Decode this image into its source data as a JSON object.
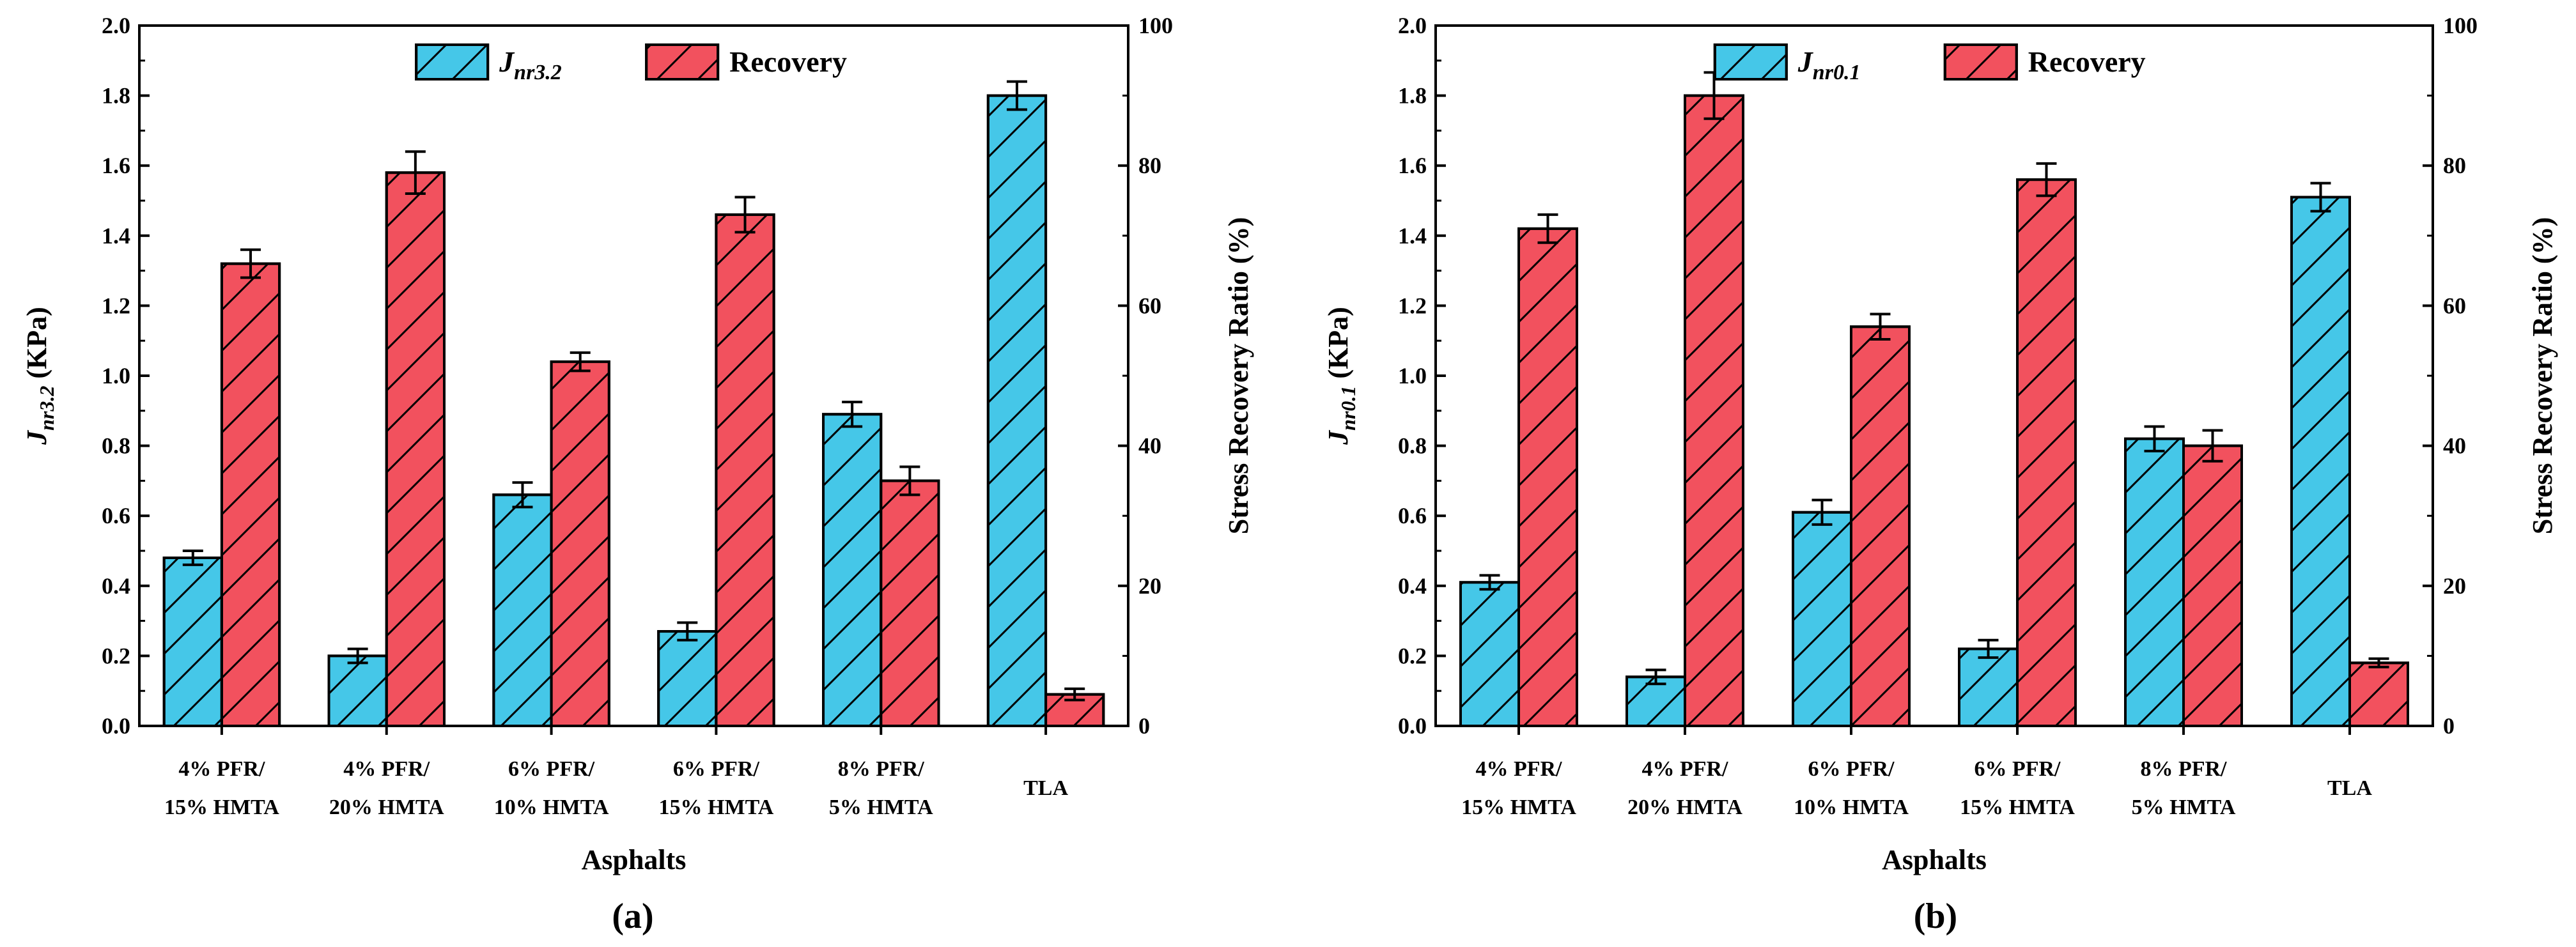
{
  "colors": {
    "series1": "#45C7E8",
    "series2": "#F2515E",
    "axis": "#000000"
  },
  "chart_data": [
    {
      "type": "bar",
      "panel": "(a)",
      "categories": [
        [
          "4% PFR/",
          "15% HMTA"
        ],
        [
          "4% PFR/",
          "20% HMTA"
        ],
        [
          "6% PFR/",
          "10% HMTA"
        ],
        [
          "6% PFR/",
          "15% HMTA"
        ],
        [
          "8% PFR/",
          "5% HMTA"
        ],
        [
          "TLA"
        ]
      ],
      "xlabel": "Asphalts",
      "ylabel": {
        "main": "J",
        "sub": "nr3.2",
        "unit": " (KPa)"
      },
      "y2label": "Stress Recovery Ratio (%)",
      "ylim": [
        0,
        2.0
      ],
      "y2lim": [
        0,
        100
      ],
      "yticks": [
        "0.0",
        "0.2",
        "0.4",
        "0.6",
        "0.8",
        "1.0",
        "1.2",
        "1.4",
        "1.6",
        "1.8",
        "2.0"
      ],
      "y2ticks": [
        "0",
        "20",
        "40",
        "60",
        "80",
        "100"
      ],
      "series": [
        {
          "name": "Jnr3.2",
          "legend_main": "J",
          "legend_sub": "nr3.2",
          "axis": "left",
          "values": [
            0.48,
            0.2,
            0.66,
            0.27,
            0.89,
            1.8
          ],
          "errors": [
            0.02,
            0.02,
            0.035,
            0.025,
            0.035,
            0.04
          ]
        },
        {
          "name": "Recovery",
          "legend_main": "Recovery",
          "legend_sub": "",
          "axis": "right",
          "values": [
            66,
            79,
            52,
            73,
            35,
            4.5
          ],
          "errors": [
            2,
            3,
            1.3,
            2.5,
            2,
            0.8
          ]
        }
      ]
    },
    {
      "type": "bar",
      "panel": "(b)",
      "categories": [
        [
          "4% PFR/",
          "15% HMTA"
        ],
        [
          "4% PFR/",
          "20% HMTA"
        ],
        [
          "6% PFR/",
          "10% HMTA"
        ],
        [
          "6% PFR/",
          "15% HMTA"
        ],
        [
          "8% PFR/",
          "5% HMTA"
        ],
        [
          "TLA"
        ]
      ],
      "xlabel": "Asphalts",
      "ylabel": {
        "main": "J",
        "sub": "nr0.1",
        "unit": " (KPa)"
      },
      "y2label": "Stress Recovery Ratio (%)",
      "ylim": [
        0,
        2.0
      ],
      "y2lim": [
        0,
        100
      ],
      "yticks": [
        "0.0",
        "0.2",
        "0.4",
        "0.6",
        "0.8",
        "1.0",
        "1.2",
        "1.4",
        "1.6",
        "1.8",
        "2.0"
      ],
      "y2ticks": [
        "0",
        "20",
        "40",
        "60",
        "80",
        "100"
      ],
      "series": [
        {
          "name": "Jnr0.1",
          "legend_main": "J",
          "legend_sub": "nr0.1",
          "axis": "left",
          "values": [
            0.41,
            0.14,
            0.61,
            0.22,
            0.82,
            1.51
          ],
          "errors": [
            0.02,
            0.02,
            0.035,
            0.025,
            0.035,
            0.04
          ]
        },
        {
          "name": "Recovery",
          "legend_main": "Recovery",
          "legend_sub": "",
          "axis": "right",
          "values": [
            71,
            90,
            57,
            78,
            40,
            9
          ],
          "errors": [
            2,
            3.3,
            1.8,
            2.3,
            2.2,
            0.6
          ]
        }
      ]
    }
  ]
}
